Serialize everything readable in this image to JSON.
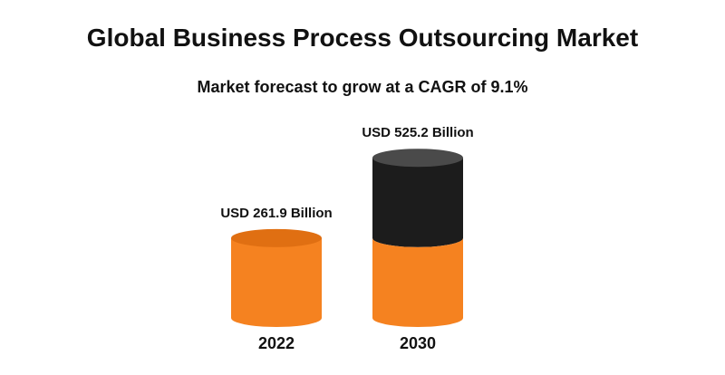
{
  "chart_data": {
    "type": "bar",
    "title": "Global Business Process Outsourcing Market",
    "subtitle": "Market forecast to grow at a CAGR of 9.1%",
    "categories": [
      "2022",
      "2030"
    ],
    "values": [
      261.9,
      525.2
    ],
    "data_labels": [
      "USD 261.9 Billion",
      "USD 525.2 Billion"
    ],
    "xlabel": "",
    "ylabel": "",
    "grid": false,
    "legend": "none",
    "colors": {
      "base": "#F58220",
      "base_top": "#E06F12",
      "growth": "#1C1C1C",
      "growth_top": "#4A4A4A"
    }
  }
}
